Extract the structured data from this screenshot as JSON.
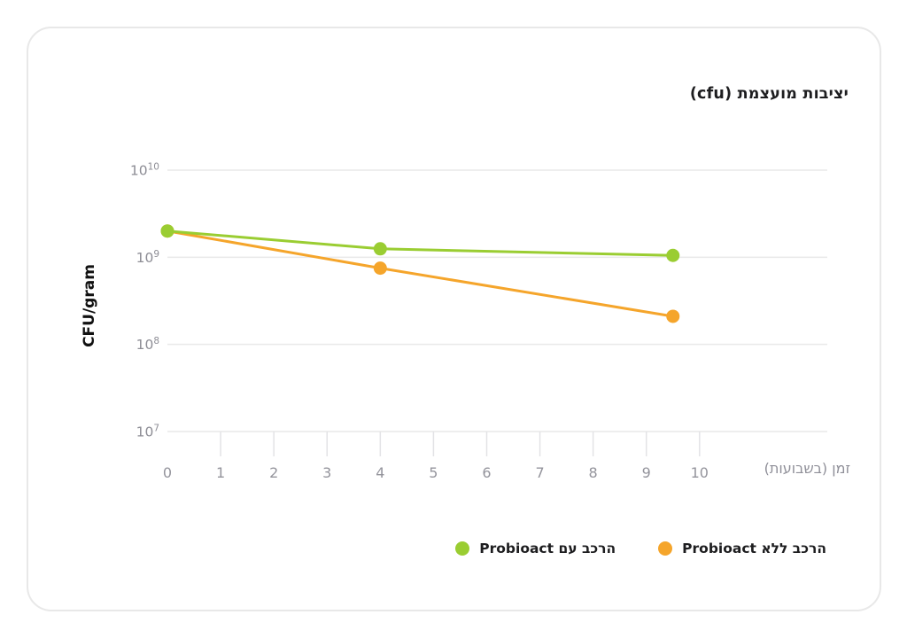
{
  "chart_data": {
    "type": "line",
    "title": "יציבות מועצמת (cfu)",
    "xlabel": "זמן (בשבועות)",
    "ylabel": "CFU/gram",
    "x": [
      0,
      4,
      9.5
    ],
    "series": [
      {
        "name": "הרכב עם Probioact",
        "color": "#9acd32",
        "values": [
          2000000000,
          1250000000,
          1050000000
        ]
      },
      {
        "name": "הרכב ללא Probioact",
        "color": "#f5a52b",
        "values": [
          2000000000,
          750000000,
          210000000
        ]
      }
    ],
    "x_ticks": [
      0,
      1,
      2,
      3,
      4,
      5,
      6,
      7,
      8,
      9,
      10
    ],
    "x_tick_marks": [
      1,
      2,
      3,
      4,
      5,
      6,
      7,
      8,
      9,
      10
    ],
    "xlim": [
      0,
      12.4
    ],
    "y_scale": "log",
    "y_tick_exponents": [
      10,
      9,
      8,
      7
    ],
    "ylim": [
      10000000,
      10000000000
    ],
    "grid": "horizontal",
    "legend_position": "bottom-right",
    "colors": {
      "grid": "#e9e9e9",
      "tick_mark": "#e3e3e6",
      "axis_text": "#94949c",
      "title_text": "#1d1d1f"
    }
  }
}
